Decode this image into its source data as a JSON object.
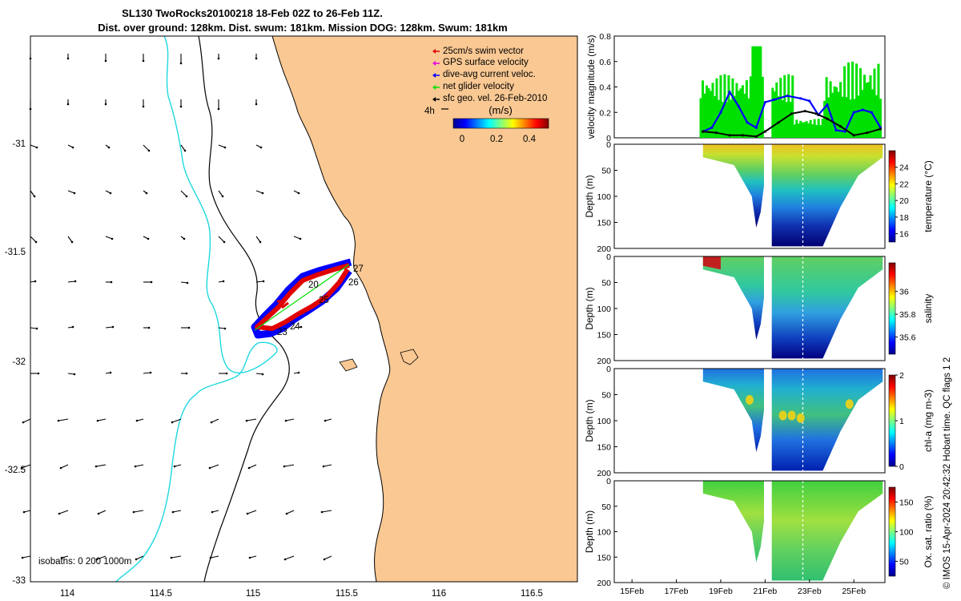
{
  "title": {
    "line1": "SL130 TwoRocks20100218 18-Feb 02Z to 26-Feb 11Z.",
    "line2": "Dist. over ground: 128km. Dist. swum: 181km. Mission DOG: 128km. Swum: 181km"
  },
  "colors": {
    "land": "#f9c893",
    "isobath_200": "#000000",
    "isobath_1000": "#1fd8e0",
    "swim_vector": "#e10000",
    "gps_velocity": "#e000e0",
    "dive_avg": "#0000ff",
    "net_velocity": "#00e000",
    "sfc_geo": "#000000"
  },
  "map": {
    "legend": [
      {
        "label": "25cm/s swim vector",
        "icon": "red-arrow"
      },
      {
        "label": "GPS surface velocity",
        "icon": "magenta-arrow"
      },
      {
        "label": "dive-avg current veloc.",
        "icon": "blue-arrow"
      },
      {
        "label": "net glider velocity",
        "icon": "green-arrow"
      },
      {
        "label": "sfc geo. vel. 26-Feb-2010",
        "icon": "black-arrow"
      }
    ],
    "scale_arrow_label": "4h",
    "colorbar_title": "(m/s)",
    "colorbar_ticks": [
      "0",
      "0.2",
      "0.4"
    ],
    "isobaths_note": "isobaths: 0   200  1000m",
    "day_labels": [
      "20",
      "24",
      "25",
      "26",
      "27",
      "23"
    ],
    "x_ticks": [
      "114",
      "114.5",
      "115",
      "115.5",
      "116",
      "116.5"
    ],
    "y_ticks": [
      "-31",
      "-31.5",
      "-32",
      "-32.5",
      "-33"
    ]
  },
  "chart_data": [
    {
      "type": "line",
      "title": "",
      "ylabel": "velocity magnitude (m/s)",
      "ylim": [
        0,
        0.8
      ],
      "y_ticks": [
        "0",
        "0.2",
        "0.4",
        "0.6",
        "0.8"
      ],
      "series": [
        {
          "name": "",
          "color": "#0000ff",
          "x": [
            18.2,
            18.6,
            19.0,
            19.4,
            19.8,
            20.2,
            20.6,
            21.0,
            21.4,
            22.0,
            22.6,
            23.0,
            23.4,
            23.8,
            24.2,
            24.6,
            25.0,
            25.4,
            25.8,
            26.2
          ],
          "values": [
            0.05,
            0.08,
            0.2,
            0.36,
            0.25,
            0.12,
            0.08,
            0.28,
            0.3,
            0.33,
            0.31,
            0.29,
            0.18,
            0.26,
            0.06,
            0.05,
            0.2,
            0.22,
            0.2,
            0.08
          ]
        },
        {
          "name": "",
          "color": "#000000",
          "x": [
            18.2,
            18.8,
            19.4,
            20.0,
            20.6,
            21.0,
            21.6,
            22.2,
            22.8,
            23.3,
            23.8,
            24.4,
            25.0,
            25.6,
            26.2
          ],
          "values": [
            0.05,
            0.04,
            0.02,
            0.02,
            0.01,
            0.05,
            0.12,
            0.19,
            0.21,
            0.19,
            0.15,
            0.09,
            0.02,
            0.04,
            0.07
          ]
        }
      ]
    },
    {
      "type": "heatmap",
      "title": "",
      "ylabel": "Depth (m)",
      "clabel": "temperature (°C)",
      "clim": [
        15,
        26
      ],
      "c_ticks": [
        "16",
        "18",
        "20",
        "22",
        "24"
      ],
      "y_ticks": [
        "0",
        "50",
        "100",
        "150",
        "200"
      ]
    },
    {
      "type": "heatmap",
      "title": "",
      "ylabel": "Depth (m)",
      "clabel": "salinity",
      "clim": [
        35.45,
        36.25
      ],
      "c_ticks": [
        "35.6",
        "35.8",
        "36"
      ],
      "y_ticks": [
        "0",
        "50",
        "100",
        "150",
        "200"
      ]
    },
    {
      "type": "heatmap",
      "title": "",
      "ylabel": "Depth (m)",
      "clabel": "chl-a (mg m-3)",
      "clim": [
        0,
        2
      ],
      "c_ticks": [
        "0",
        "1",
        "2"
      ],
      "y_ticks": [
        "0",
        "50",
        "100",
        "150",
        "200"
      ]
    },
    {
      "type": "heatmap",
      "title": "",
      "ylabel": "Depth (m)",
      "clabel": "Ox. sat. ratio (%)",
      "clim": [
        25,
        175
      ],
      "c_ticks": [
        "50",
        "100",
        "150"
      ],
      "y_ticks": [
        "0",
        "50",
        "100",
        "150",
        "200"
      ]
    }
  ],
  "time_axis": {
    "x_ticks": [
      "15Feb",
      "17Feb",
      "19Feb",
      "21Feb",
      "23Feb",
      "25Feb"
    ],
    "x_range_days": [
      14.2,
      26.4
    ]
  },
  "credit": "© IMOS 15-Apr-2024 20:42:32 Hobart time. QC flags 1  2"
}
